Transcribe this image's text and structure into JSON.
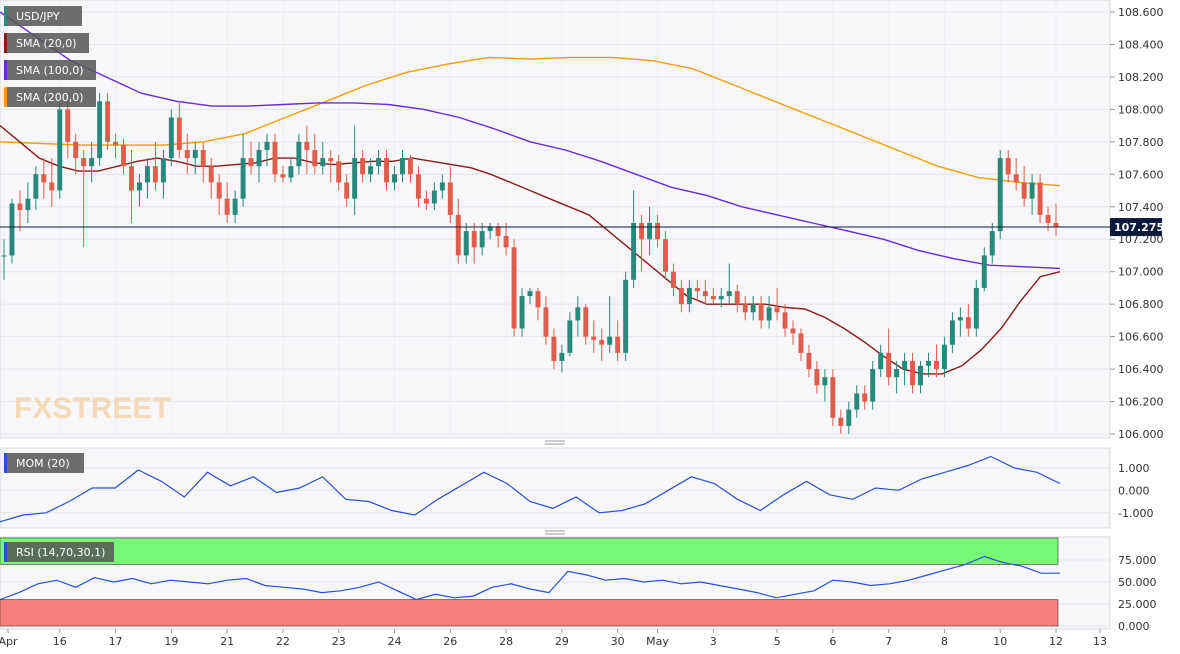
{
  "header": {
    "symbol": "USD/JPY"
  },
  "legend": [
    {
      "label": "SMA (20,0)",
      "color": "#8b1a1a"
    },
    {
      "label": "SMA (100,0)",
      "color": "#6a2bd8"
    },
    {
      "label": "SMA (200,0)",
      "color": "#f39c12"
    }
  ],
  "watermark": {
    "text_a": "FX",
    "text_b": "STREET"
  },
  "colors": {
    "up": "#26897a",
    "down": "#e05c4c",
    "mom": "#2a4fd6",
    "rsi": "#2a4fd6",
    "rsi_over": "#77f977",
    "rsi_under": "#f77f7f",
    "current": "#0b1a3a"
  },
  "chart_data": [
    {
      "type": "candlestick",
      "title": "USD/JPY",
      "y_ticks": [
        "108.600",
        "108.400",
        "108.200",
        "108.000",
        "107.800",
        "107.600",
        "107.400",
        "107.200",
        "107.000",
        "106.800",
        "106.600",
        "106.400",
        "106.200",
        "106.000"
      ],
      "ylim": [
        106.0,
        108.6
      ],
      "current_price": 107.275,
      "current_label": "107.275",
      "x_labels": [
        "Apr",
        "16",
        "17",
        "19",
        "21",
        "22",
        "23",
        "24",
        "26",
        "28",
        "29",
        "30",
        "May",
        "3",
        "5",
        "6",
        "7",
        "8",
        "10",
        "12",
        "13"
      ],
      "x_label_pos": [
        0,
        7,
        14,
        21,
        28,
        35,
        42,
        49,
        56,
        63,
        70,
        77,
        82,
        89,
        97,
        104,
        111,
        118,
        125,
        132,
        139
      ],
      "candles": [
        [
          107.1,
          107.2,
          106.95,
          107.1
        ],
        [
          107.1,
          107.45,
          107.05,
          107.42
        ],
        [
          107.42,
          107.5,
          107.25,
          107.38
        ],
        [
          107.38,
          107.55,
          107.3,
          107.45
        ],
        [
          107.45,
          107.65,
          107.38,
          107.6
        ],
        [
          107.6,
          107.7,
          107.45,
          107.55
        ],
        [
          107.55,
          107.7,
          107.4,
          107.5
        ],
        [
          107.5,
          108.05,
          107.45,
          108.0
        ],
        [
          108.0,
          108.05,
          107.7,
          107.8
        ],
        [
          107.8,
          107.85,
          107.6,
          107.7
        ],
        [
          107.7,
          107.75,
          107.15,
          107.65
        ],
        [
          107.65,
          107.8,
          107.55,
          107.7
        ],
        [
          107.7,
          108.1,
          107.65,
          108.05
        ],
        [
          108.05,
          108.1,
          107.75,
          107.8
        ],
        [
          107.8,
          107.85,
          107.7,
          107.78
        ],
        [
          107.78,
          107.82,
          107.6,
          107.65
        ],
        [
          107.65,
          107.75,
          107.3,
          107.5
        ],
        [
          107.5,
          107.6,
          107.4,
          107.55
        ],
        [
          107.55,
          107.7,
          107.45,
          107.65
        ],
        [
          107.65,
          107.8,
          107.5,
          107.55
        ],
        [
          107.55,
          107.75,
          107.45,
          107.7
        ],
        [
          107.7,
          108.0,
          107.65,
          107.95
        ],
        [
          107.95,
          108.05,
          107.7,
          107.75
        ],
        [
          107.75,
          107.85,
          107.6,
          107.7
        ],
        [
          107.7,
          107.8,
          107.6,
          107.75
        ],
        [
          107.75,
          107.8,
          107.55,
          107.65
        ],
        [
          107.65,
          107.7,
          107.45,
          107.55
        ],
        [
          107.55,
          107.6,
          107.35,
          107.45
        ],
        [
          107.45,
          107.55,
          107.3,
          107.35
        ],
        [
          107.35,
          107.5,
          107.3,
          107.45
        ],
        [
          107.45,
          107.85,
          107.4,
          107.7
        ],
        [
          107.7,
          107.8,
          107.6,
          107.65
        ],
        [
          107.65,
          107.8,
          107.55,
          107.75
        ],
        [
          107.75,
          107.85,
          107.65,
          107.8
        ],
        [
          107.8,
          107.85,
          107.55,
          107.6
        ],
        [
          107.6,
          107.65,
          107.55,
          107.58
        ],
        [
          107.58,
          107.7,
          107.55,
          107.65
        ],
        [
          107.65,
          107.85,
          107.6,
          107.8
        ],
        [
          107.8,
          107.9,
          107.6,
          107.75
        ],
        [
          107.75,
          107.85,
          107.6,
          107.65
        ],
        [
          107.65,
          107.8,
          107.6,
          107.7
        ],
        [
          107.7,
          107.75,
          107.55,
          107.68
        ],
        [
          107.68,
          107.72,
          107.5,
          107.55
        ],
        [
          107.55,
          107.6,
          107.4,
          107.45
        ],
        [
          107.45,
          107.9,
          107.35,
          107.7
        ],
        [
          107.7,
          107.75,
          107.55,
          107.6
        ],
        [
          107.6,
          107.7,
          107.55,
          107.65
        ],
        [
          107.65,
          107.75,
          107.6,
          107.7
        ],
        [
          107.7,
          107.75,
          107.5,
          107.55
        ],
        [
          107.55,
          107.65,
          107.5,
          107.6
        ],
        [
          107.6,
          107.75,
          107.55,
          107.7
        ],
        [
          107.7,
          107.72,
          107.55,
          107.6
        ],
        [
          107.6,
          107.65,
          107.4,
          107.45
        ],
        [
          107.45,
          107.5,
          107.38,
          107.42
        ],
        [
          107.42,
          107.55,
          107.38,
          107.5
        ],
        [
          107.5,
          107.6,
          107.45,
          107.55
        ],
        [
          107.55,
          107.65,
          107.3,
          107.35
        ],
        [
          107.35,
          107.45,
          107.05,
          107.1
        ],
        [
          107.1,
          107.3,
          107.05,
          107.25
        ],
        [
          107.25,
          107.3,
          107.05,
          107.15
        ],
        [
          107.15,
          107.3,
          107.1,
          107.25
        ],
        [
          107.25,
          107.3,
          107.2,
          107.28
        ],
        [
          107.28,
          107.3,
          107.15,
          107.22
        ],
        [
          107.22,
          107.3,
          107.1,
          107.15
        ],
        [
          107.15,
          107.2,
          106.6,
          106.65
        ],
        [
          106.65,
          106.9,
          106.6,
          106.85
        ],
        [
          106.85,
          106.9,
          106.8,
          106.88
        ],
        [
          106.88,
          106.9,
          106.7,
          106.78
        ],
        [
          106.78,
          106.85,
          106.55,
          106.6
        ],
        [
          106.6,
          106.65,
          106.4,
          106.45
        ],
        [
          106.45,
          106.55,
          106.38,
          106.5
        ],
        [
          106.5,
          106.75,
          106.48,
          106.7
        ],
        [
          106.7,
          106.85,
          106.6,
          106.78
        ],
        [
          106.78,
          106.8,
          106.55,
          106.6
        ],
        [
          106.6,
          106.7,
          106.5,
          106.58
        ],
        [
          106.58,
          106.65,
          106.45,
          106.55
        ],
        [
          106.55,
          106.85,
          106.5,
          106.6
        ],
        [
          106.6,
          106.7,
          106.45,
          106.5
        ],
        [
          106.5,
          107.0,
          106.45,
          106.95
        ],
        [
          106.95,
          107.5,
          106.9,
          107.3
        ],
        [
          107.3,
          107.35,
          107.0,
          107.2
        ],
        [
          107.2,
          107.4,
          107.1,
          107.3
        ],
        [
          107.3,
          107.35,
          107.15,
          107.2
        ],
        [
          107.2,
          107.25,
          106.95,
          107.0
        ],
        [
          107.0,
          107.05,
          106.85,
          106.9
        ],
        [
          106.9,
          106.95,
          106.75,
          106.8
        ],
        [
          106.8,
          106.95,
          106.75,
          106.9
        ],
        [
          106.9,
          106.95,
          106.82,
          106.88
        ],
        [
          106.88,
          106.95,
          106.8,
          106.85
        ],
        [
          106.85,
          106.9,
          106.8,
          106.83
        ],
        [
          106.83,
          106.9,
          106.78,
          106.85
        ],
        [
          106.85,
          107.05,
          106.8,
          106.88
        ],
        [
          106.88,
          106.92,
          106.75,
          106.8
        ],
        [
          106.8,
          106.85,
          106.7,
          106.75
        ],
        [
          106.75,
          106.85,
          106.7,
          106.8
        ],
        [
          106.8,
          106.85,
          106.65,
          106.7
        ],
        [
          106.7,
          106.85,
          106.65,
          106.78
        ],
        [
          106.78,
          106.9,
          106.7,
          106.75
        ],
        [
          106.75,
          106.8,
          106.6,
          106.65
        ],
        [
          106.65,
          106.7,
          106.55,
          106.62
        ],
        [
          106.62,
          106.65,
          106.45,
          106.5
        ],
        [
          106.5,
          106.55,
          106.35,
          106.4
        ],
        [
          106.4,
          106.45,
          106.25,
          106.3
        ],
        [
          106.3,
          106.4,
          106.2,
          106.35
        ],
        [
          106.35,
          106.4,
          106.05,
          106.1
        ],
        [
          106.1,
          106.15,
          106.0,
          106.05
        ],
        [
          106.05,
          106.2,
          106.0,
          106.15
        ],
        [
          106.15,
          106.3,
          106.1,
          106.25
        ],
        [
          106.25,
          106.3,
          106.15,
          106.2
        ],
        [
          106.2,
          106.45,
          106.15,
          106.4
        ],
        [
          106.4,
          106.55,
          106.35,
          106.5
        ],
        [
          106.5,
          106.65,
          106.3,
          106.35
        ],
        [
          106.35,
          106.45,
          106.25,
          106.4
        ],
        [
          106.4,
          106.5,
          106.3,
          106.45
        ],
        [
          106.45,
          106.5,
          106.25,
          106.3
        ],
        [
          106.3,
          106.45,
          106.25,
          106.42
        ],
        [
          106.42,
          106.5,
          106.35,
          106.45
        ],
        [
          106.45,
          106.55,
          106.35,
          106.4
        ],
        [
          106.4,
          106.6,
          106.35,
          106.55
        ],
        [
          106.55,
          106.75,
          106.5,
          106.7
        ],
        [
          106.7,
          106.78,
          106.6,
          106.72
        ],
        [
          106.72,
          106.8,
          106.6,
          106.65
        ],
        [
          106.65,
          106.95,
          106.6,
          106.9
        ],
        [
          106.9,
          107.15,
          106.88,
          107.1
        ],
        [
          107.1,
          107.3,
          107.05,
          107.25
        ],
        [
          107.25,
          107.75,
          107.2,
          107.7
        ],
        [
          107.7,
          107.75,
          107.55,
          107.6
        ],
        [
          107.6,
          107.7,
          107.5,
          107.55
        ],
        [
          107.55,
          107.65,
          107.4,
          107.45
        ],
        [
          107.45,
          107.6,
          107.35,
          107.55
        ],
        [
          107.55,
          107.6,
          107.3,
          107.35
        ],
        [
          107.35,
          107.4,
          107.25,
          107.3
        ],
        [
          107.3,
          107.42,
          107.22,
          107.275
        ]
      ],
      "sma20": [
        107.9,
        107.8,
        107.7,
        107.65,
        107.62,
        107.62,
        107.65,
        107.68,
        107.7,
        107.68,
        107.65,
        107.65,
        107.66,
        107.67,
        107.7,
        107.7,
        107.67,
        107.66,
        107.67,
        107.68,
        107.68,
        107.7,
        107.68,
        107.66,
        107.64,
        107.6,
        107.55,
        107.5,
        107.45,
        107.4,
        107.35,
        107.25,
        107.15,
        107.05,
        106.95,
        106.85,
        106.8,
        106.8,
        106.8,
        106.8,
        106.78,
        106.77,
        106.72,
        106.65,
        106.57,
        106.48,
        106.4,
        106.37,
        106.37,
        106.42,
        106.52,
        106.65,
        106.82,
        106.97,
        107.0
      ],
      "sma100": [
        108.6,
        108.45,
        108.3,
        108.2,
        108.1,
        108.05,
        108.02,
        108.02,
        108.03,
        108.04,
        108.04,
        108.03,
        108.0,
        107.95,
        107.88,
        107.8,
        107.75,
        107.68,
        107.6,
        107.52,
        107.47,
        107.4,
        107.35,
        107.3,
        107.25,
        107.2,
        107.13,
        107.08,
        107.04,
        107.03,
        107.02
      ],
      "sma200": [
        107.8,
        107.79,
        107.78,
        107.78,
        107.78,
        107.8,
        107.85,
        107.95,
        108.05,
        108.15,
        108.23,
        108.28,
        108.32,
        108.31,
        108.32,
        108.32,
        108.3,
        108.25,
        108.15,
        108.05,
        107.95,
        107.85,
        107.75,
        107.65,
        107.58,
        107.55,
        107.53
      ],
      "mom": [
        -1.4,
        -1.1,
        -1.0,
        -0.5,
        0.1,
        0.1,
        0.9,
        0.4,
        -0.3,
        0.8,
        0.2,
        0.6,
        -0.1,
        0.1,
        0.6,
        -0.4,
        -0.5,
        -0.9,
        -1.1,
        -0.4,
        0.2,
        0.8,
        0.3,
        -0.5,
        -0.8,
        -0.3,
        -1.0,
        -0.9,
        -0.6,
        0.0,
        0.6,
        0.3,
        -0.4,
        -0.9,
        -0.2,
        0.4,
        -0.2,
        -0.4,
        0.1,
        0.0,
        0.5,
        0.8,
        1.1,
        1.5,
        1.0,
        0.8,
        0.3
      ],
      "mom_ticks": [
        "1.000",
        "0.000",
        "-1.000"
      ],
      "mom_ylim": [
        -1.5,
        1.7
      ],
      "rsi": [
        30,
        38,
        48,
        52,
        44,
        55,
        50,
        54,
        48,
        52,
        50,
        48,
        52,
        54,
        46,
        44,
        42,
        38,
        40,
        44,
        50,
        40,
        30,
        36,
        32,
        34,
        44,
        48,
        42,
        38,
        62,
        58,
        52,
        54,
        50,
        52,
        48,
        50,
        46,
        42,
        38,
        32,
        36,
        40,
        52,
        50,
        46,
        48,
        52,
        58,
        64,
        70,
        79,
        72,
        68,
        60,
        60
      ],
      "rsi_ticks": [
        "75.000",
        "50.000",
        "25.000",
        "0.000"
      ],
      "rsi_ylim": [
        0,
        100
      ],
      "rsi_upper": 70,
      "rsi_lower": 30,
      "mom_label": "MOM (20)",
      "rsi_label": "RSI (14,70,30,1)"
    }
  ]
}
